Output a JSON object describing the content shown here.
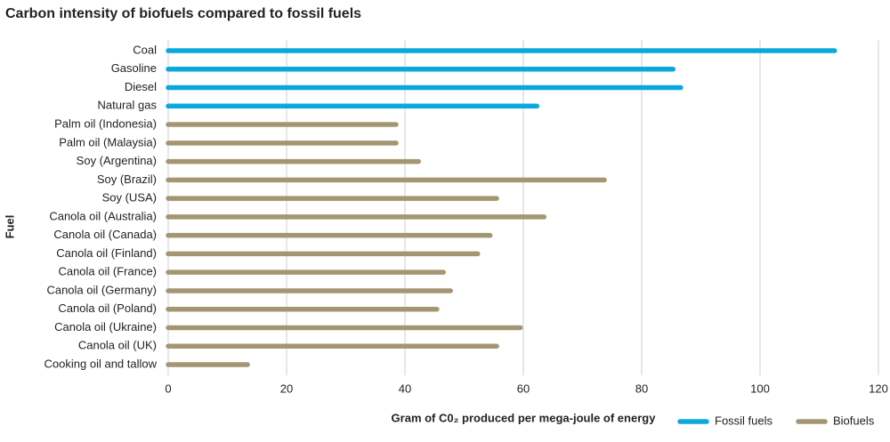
{
  "chart_data": {
    "type": "bar",
    "orientation": "horizontal",
    "title": "Carbon intensity of biofuels compared to fossil fuels",
    "x_label": "Gram of C0₂ produced per mega-joule of energy",
    "y_label": "Fuel",
    "categories": [
      "Coal",
      "Gasoline",
      "Diesel",
      "Natural gas",
      "Palm oil (Indonesia)",
      "Palm oil (Malaysia)",
      "Soy (Argentina)",
      "Soy (Brazil)",
      "Soy (USA)",
      "Canola oil (Australia)",
      "Canola oil (Canada)",
      "Canola oil (Finland)",
      "Canola oil (France)",
      "Canola oil (Germany)",
      "Canola oil (Poland)",
      "Canola oil (Ukraine)",
      "Canola oil (UK)",
      "Cooking oil and tallow"
    ],
    "series": [
      {
        "name": "Fossil fuels",
        "color": "#0aa8dc",
        "values": [
          112.6,
          85.3,
          86.6,
          62.3,
          null,
          null,
          null,
          null,
          null,
          null,
          null,
          null,
          null,
          null,
          null,
          null,
          null,
          null
        ]
      },
      {
        "name": "Biofuels",
        "color": "#a39773",
        "values": [
          null,
          null,
          null,
          null,
          38.5,
          38.5,
          42.3,
          73.7,
          55.5,
          63.5,
          54.4,
          52.3,
          46.5,
          47.7,
          45.4,
          59.5,
          55.5,
          13.4
        ]
      }
    ],
    "xlim": [
      0,
      120
    ],
    "xticks": [
      0,
      20,
      40,
      60,
      80,
      100,
      120
    ],
    "grid": true,
    "legend": "bottom-right"
  }
}
